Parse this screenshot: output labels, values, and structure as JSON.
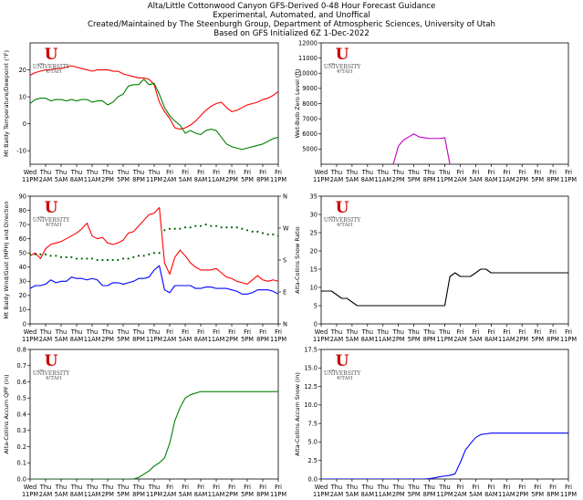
{
  "header": {
    "line1": "Alta/Little Cottonwood Canyon GFS-Derived 0-48 Hour Forecast Guidance",
    "line2": "Experimental, Automated, and Unoffical",
    "line3": "Created/Maintained by The Steenburgh Group, Department of Atmospheric Sciences, University of Utah",
    "line4": "Based on GFS Initialized 6Z 1-Dec-2022"
  },
  "logo": {
    "letter": "U",
    "the": "THE",
    "university": "UNIVERSITY",
    "of": "OF",
    "utah": "UTAH",
    "color": "#cc0000"
  },
  "x_ticks": [
    {
      "day": "Wed",
      "time": "11PM"
    },
    {
      "day": "Thu",
      "time": "2AM"
    },
    {
      "day": "Thu",
      "time": "5AM"
    },
    {
      "day": "Thu",
      "time": "8AM"
    },
    {
      "day": "Thu",
      "time": "11AM"
    },
    {
      "day": "Thu",
      "time": "2PM"
    },
    {
      "day": "Thu",
      "time": "5PM"
    },
    {
      "day": "Thu",
      "time": "8PM"
    },
    {
      "day": "Thu",
      "time": "11PM"
    },
    {
      "day": "Fri",
      "time": "2AM"
    },
    {
      "day": "Fri",
      "time": "5AM"
    },
    {
      "day": "Fri",
      "time": "8AM"
    },
    {
      "day": "Fri",
      "time": "11AM"
    },
    {
      "day": "Fri",
      "time": "2PM"
    },
    {
      "day": "Fri",
      "time": "5PM"
    },
    {
      "day": "Fri",
      "time": "8PM"
    },
    {
      "day": "Fri",
      "time": "11PM"
    }
  ],
  "chart_data": [
    {
      "id": "temp",
      "type": "line",
      "ylabel": "Mt Baldy Temperature/Dewpoint (°F)",
      "ylim": [
        -15,
        30
      ],
      "yticks": [
        -10,
        0,
        10,
        20
      ],
      "x_hours": [
        0,
        1,
        2,
        3,
        4,
        5,
        6,
        7,
        8,
        9,
        10,
        11,
        12,
        13,
        14,
        15,
        16,
        17,
        18,
        19,
        20,
        21,
        22,
        23,
        24,
        25,
        26,
        27,
        28,
        29,
        30,
        31,
        32,
        33,
        34,
        35,
        36,
        37,
        38,
        39,
        40,
        41,
        42,
        43,
        44,
        45,
        46,
        47,
        48
      ],
      "series": [
        {
          "color": "#ff0000",
          "values": [
            18,
            19,
            19.5,
            20,
            20,
            20.5,
            20.5,
            21,
            21.5,
            21,
            20.5,
            20,
            19.5,
            20,
            20,
            20,
            19.5,
            19.5,
            18.5,
            18,
            17.5,
            17,
            17,
            16.5,
            14.5,
            8,
            4.5,
            2,
            -1.5,
            -2,
            -1.5,
            -0.5,
            1,
            3,
            5,
            6.5,
            7.5,
            8,
            6,
            4.5,
            5,
            6,
            7,
            7.5,
            8,
            9,
            9.5,
            10.5,
            12
          ]
        },
        {
          "color": "#008000",
          "values": [
            7.5,
            9,
            9.5,
            9.5,
            8.5,
            9,
            9,
            8.5,
            9,
            8.5,
            9,
            9,
            8,
            8.5,
            8.5,
            7,
            8,
            10,
            11,
            14,
            14.5,
            14.5,
            16.5,
            14.5,
            15,
            11,
            6,
            3,
            1,
            -0.5,
            -3.5,
            -2.5,
            -3.5,
            -4,
            -2.5,
            -2,
            -2.5,
            -5,
            -7.5,
            -8.5,
            -9,
            -9.5,
            -9,
            -8.5,
            -8,
            -7.5,
            -6.5,
            -5.5,
            -5
          ]
        }
      ]
    },
    {
      "id": "wbz",
      "type": "line",
      "ylabel": "Wet-Bulb Zero Level (ft)",
      "ylim": [
        4000,
        12000
      ],
      "yticks": [
        5000,
        6000,
        7000,
        8000,
        9000,
        10000,
        11000,
        12000
      ],
      "x_hours": [
        14,
        15,
        16,
        17,
        18,
        19,
        20,
        21,
        22,
        23,
        24,
        25
      ],
      "series": [
        {
          "color": "#bf00bf",
          "values": [
            4000,
            5200,
            5600,
            5800,
            6000,
            5800,
            5750,
            5700,
            5700,
            5700,
            5750,
            4000
          ]
        }
      ]
    },
    {
      "id": "wind",
      "type": "line",
      "ylabel": "Mt Baldy Wind/Gust (MPH) and Direction",
      "ylim": [
        0,
        90
      ],
      "yticks": [
        0,
        10,
        20,
        30,
        40,
        50,
        60,
        70,
        80,
        90
      ],
      "right_ticks": [
        "N",
        "E",
        "S",
        "W",
        "N"
      ],
      "x_hours": [
        0,
        1,
        2,
        3,
        4,
        5,
        6,
        7,
        8,
        9,
        10,
        11,
        12,
        13,
        14,
        15,
        16,
        17,
        18,
        19,
        20,
        21,
        22,
        23,
        24,
        25,
        26,
        27,
        28,
        29,
        30,
        31,
        32,
        33,
        34,
        35,
        36,
        37,
        38,
        39,
        40,
        41,
        42,
        43,
        44,
        45,
        46,
        47,
        48
      ],
      "series": [
        {
          "color": "#ff0000",
          "values": [
            48,
            50,
            46,
            53,
            56,
            57,
            58,
            60,
            62,
            64,
            67,
            71,
            62,
            60,
            61,
            57,
            56,
            57,
            59,
            64,
            65,
            69,
            73,
            77,
            78,
            82,
            43,
            35,
            47,
            52,
            48,
            43,
            40,
            38,
            38,
            38,
            39,
            36,
            33,
            32,
            30,
            29,
            28,
            31,
            34,
            31,
            30,
            31,
            30
          ]
        },
        {
          "color": "#0000ff",
          "values": [
            25,
            27,
            27,
            28,
            31,
            29,
            30,
            30,
            33,
            32,
            32,
            31,
            32,
            31,
            27,
            27,
            29,
            29,
            28,
            29,
            30,
            32,
            32,
            33,
            38,
            41,
            24,
            22,
            27,
            27,
            27,
            27,
            25,
            25,
            26,
            26,
            25,
            25,
            25,
            24,
            23,
            21,
            21,
            22,
            24,
            24,
            24,
            23,
            21
          ]
        },
        {
          "color": "#006400",
          "style": "dotted",
          "values": [
            49,
            49,
            49,
            49,
            48,
            48,
            47,
            47,
            47,
            46,
            46,
            46,
            46,
            45,
            45,
            45,
            45,
            45,
            46,
            46,
            47,
            48,
            48,
            49,
            50,
            50,
            66,
            67,
            67,
            67,
            68,
            68,
            69,
            69,
            70,
            69,
            69,
            68,
            68,
            68,
            68,
            67,
            66,
            65,
            65,
            64,
            63,
            63,
            62
          ]
        }
      ]
    },
    {
      "id": "slr",
      "type": "line",
      "ylabel": "Alta-Collins Snow Ratio",
      "ylim": [
        0,
        35
      ],
      "yticks": [
        0,
        5,
        10,
        15,
        20,
        25,
        30,
        35
      ],
      "x_hours": [
        0,
        1,
        2,
        3,
        4,
        5,
        6,
        7,
        8,
        9,
        10,
        11,
        12,
        13,
        14,
        15,
        16,
        17,
        18,
        19,
        20,
        21,
        22,
        23,
        24,
        25,
        26,
        27,
        28,
        29,
        30,
        31,
        32,
        33,
        34,
        35,
        36,
        37,
        38,
        39,
        40,
        41,
        42,
        43,
        44,
        45,
        46,
        47,
        48
      ],
      "series": [
        {
          "color": "#000000",
          "values": [
            9,
            9,
            9,
            8,
            7,
            7,
            6,
            5,
            5,
            5,
            5,
            5,
            5,
            5,
            5,
            5,
            5,
            5,
            5,
            5,
            5,
            5,
            5,
            5,
            5,
            13,
            14,
            13,
            13,
            13,
            14,
            15,
            15,
            14,
            14,
            14,
            14,
            14,
            14,
            14,
            14,
            14,
            14,
            14,
            14,
            14,
            14,
            14,
            14
          ]
        }
      ]
    },
    {
      "id": "qpf",
      "type": "line",
      "ylabel": "Alta-Collins Accum QPF (in)",
      "ylim": [
        0,
        0.8
      ],
      "yticks": [
        0.0,
        0.1,
        0.2,
        0.3,
        0.4,
        0.5,
        0.6,
        0.7,
        0.8
      ],
      "tick_labels": [
        "0.0",
        "0.1",
        "0.2",
        "0.3",
        "0.4",
        "0.5",
        "0.6",
        "0.7",
        "0.8"
      ],
      "x_hours": [
        0,
        1,
        2,
        3,
        4,
        5,
        6,
        7,
        8,
        9,
        10,
        11,
        12,
        13,
        14,
        15,
        16,
        17,
        18,
        19,
        20,
        21,
        22,
        23,
        24,
        25,
        26,
        27,
        28,
        29,
        30,
        31,
        32,
        33,
        34,
        35,
        36,
        37,
        38,
        39,
        40,
        41,
        42,
        43,
        44,
        45,
        46,
        47,
        48
      ],
      "series": [
        {
          "color": "#008000",
          "values": [
            0,
            0,
            0,
            0,
            0,
            0,
            0,
            0,
            0,
            0,
            0,
            0,
            0,
            0,
            0,
            0,
            0,
            0,
            0,
            0,
            0,
            0.01,
            0.03,
            0.05,
            0.08,
            0.1,
            0.13,
            0.22,
            0.36,
            0.44,
            0.5,
            0.52,
            0.53,
            0.54,
            0.54,
            0.54,
            0.54,
            0.54,
            0.54,
            0.54,
            0.54,
            0.54,
            0.54,
            0.54,
            0.54,
            0.54,
            0.54,
            0.54,
            0.54
          ]
        }
      ]
    },
    {
      "id": "snow",
      "type": "line",
      "ylabel": "Alta-Collins Accum Snow (in)",
      "ylim": [
        0,
        17.5
      ],
      "yticks": [
        0.0,
        2.5,
        5.0,
        7.5,
        10.0,
        12.5,
        15.0,
        17.5
      ],
      "tick_labels": [
        "0.0",
        "2.5",
        "5.0",
        "7.5",
        "10.0",
        "12.5",
        "15.0",
        "17.5"
      ],
      "x_hours": [
        0,
        1,
        2,
        3,
        4,
        5,
        6,
        7,
        8,
        9,
        10,
        11,
        12,
        13,
        14,
        15,
        16,
        17,
        18,
        19,
        20,
        21,
        22,
        23,
        24,
        25,
        26,
        27,
        28,
        29,
        30,
        31,
        32,
        33,
        34,
        35,
        36,
        37,
        38,
        39,
        40,
        41,
        42,
        43,
        44,
        45,
        46,
        47,
        48
      ],
      "series": [
        {
          "color": "#0000ff",
          "values": [
            0,
            0,
            0,
            0,
            0,
            0,
            0,
            0,
            0,
            0,
            0,
            0,
            0,
            0,
            0,
            0,
            0,
            0,
            0,
            0,
            0,
            0.05,
            0.15,
            0.3,
            0.4,
            0.5,
            0.7,
            2.2,
            3.9,
            4.8,
            5.6,
            6.0,
            6.1,
            6.2,
            6.2,
            6.2,
            6.2,
            6.2,
            6.2,
            6.2,
            6.2,
            6.2,
            6.2,
            6.2,
            6.2,
            6.2,
            6.2,
            6.2,
            6.2
          ]
        }
      ]
    }
  ]
}
